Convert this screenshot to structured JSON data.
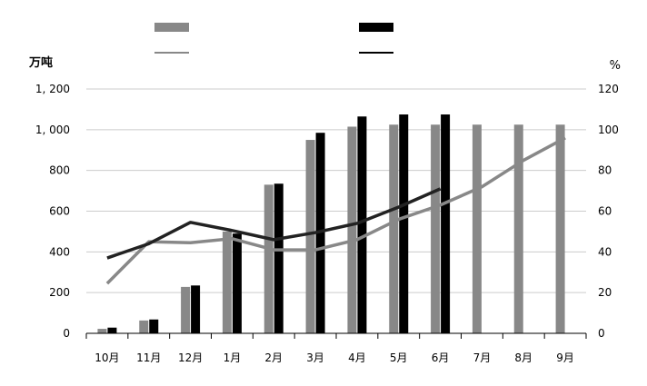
{
  "chart_data": {
    "type": "bar",
    "categories": [
      "10月",
      "11月",
      "12月",
      "1月",
      "2月",
      "3月",
      "4月",
      "5月",
      "6月",
      "7月",
      "8月",
      "9月"
    ],
    "y_left": {
      "unit_label": "万吨",
      "range": [
        0,
        1200
      ],
      "tick_labels": [
        "0",
        "200",
        "400",
        "600",
        "800",
        "1, 000",
        "1, 200"
      ]
    },
    "y_right": {
      "unit_label": "%",
      "range": [
        0,
        120
      ],
      "tick_labels": [
        "0",
        "20",
        "40",
        "60",
        "80",
        "100",
        "120"
      ]
    },
    "series": [
      {
        "kind": "bar",
        "axis": "left",
        "color": "#888888",
        "values": [
          22,
          63,
          228,
          500,
          730,
          950,
          1015,
          1025,
          1025,
          1025,
          1025,
          1025
        ]
      },
      {
        "kind": "bar",
        "axis": "left",
        "color": "#000000",
        "values": [
          28,
          68,
          235,
          490,
          735,
          985,
          1065,
          1075,
          1075,
          null,
          null,
          null
        ]
      },
      {
        "kind": "line",
        "axis": "right",
        "color": "#888888",
        "values": [
          24.5,
          45,
          44.5,
          46.5,
          41,
          41,
          46,
          56,
          63,
          72,
          85,
          96
        ]
      },
      {
        "kind": "line",
        "axis": "right",
        "color": "#222222",
        "values": [
          37,
          44,
          54.5,
          50.5,
          46,
          49.5,
          54,
          62,
          71,
          null,
          null,
          null
        ]
      }
    ],
    "legend_placement": "top",
    "grid": true
  }
}
